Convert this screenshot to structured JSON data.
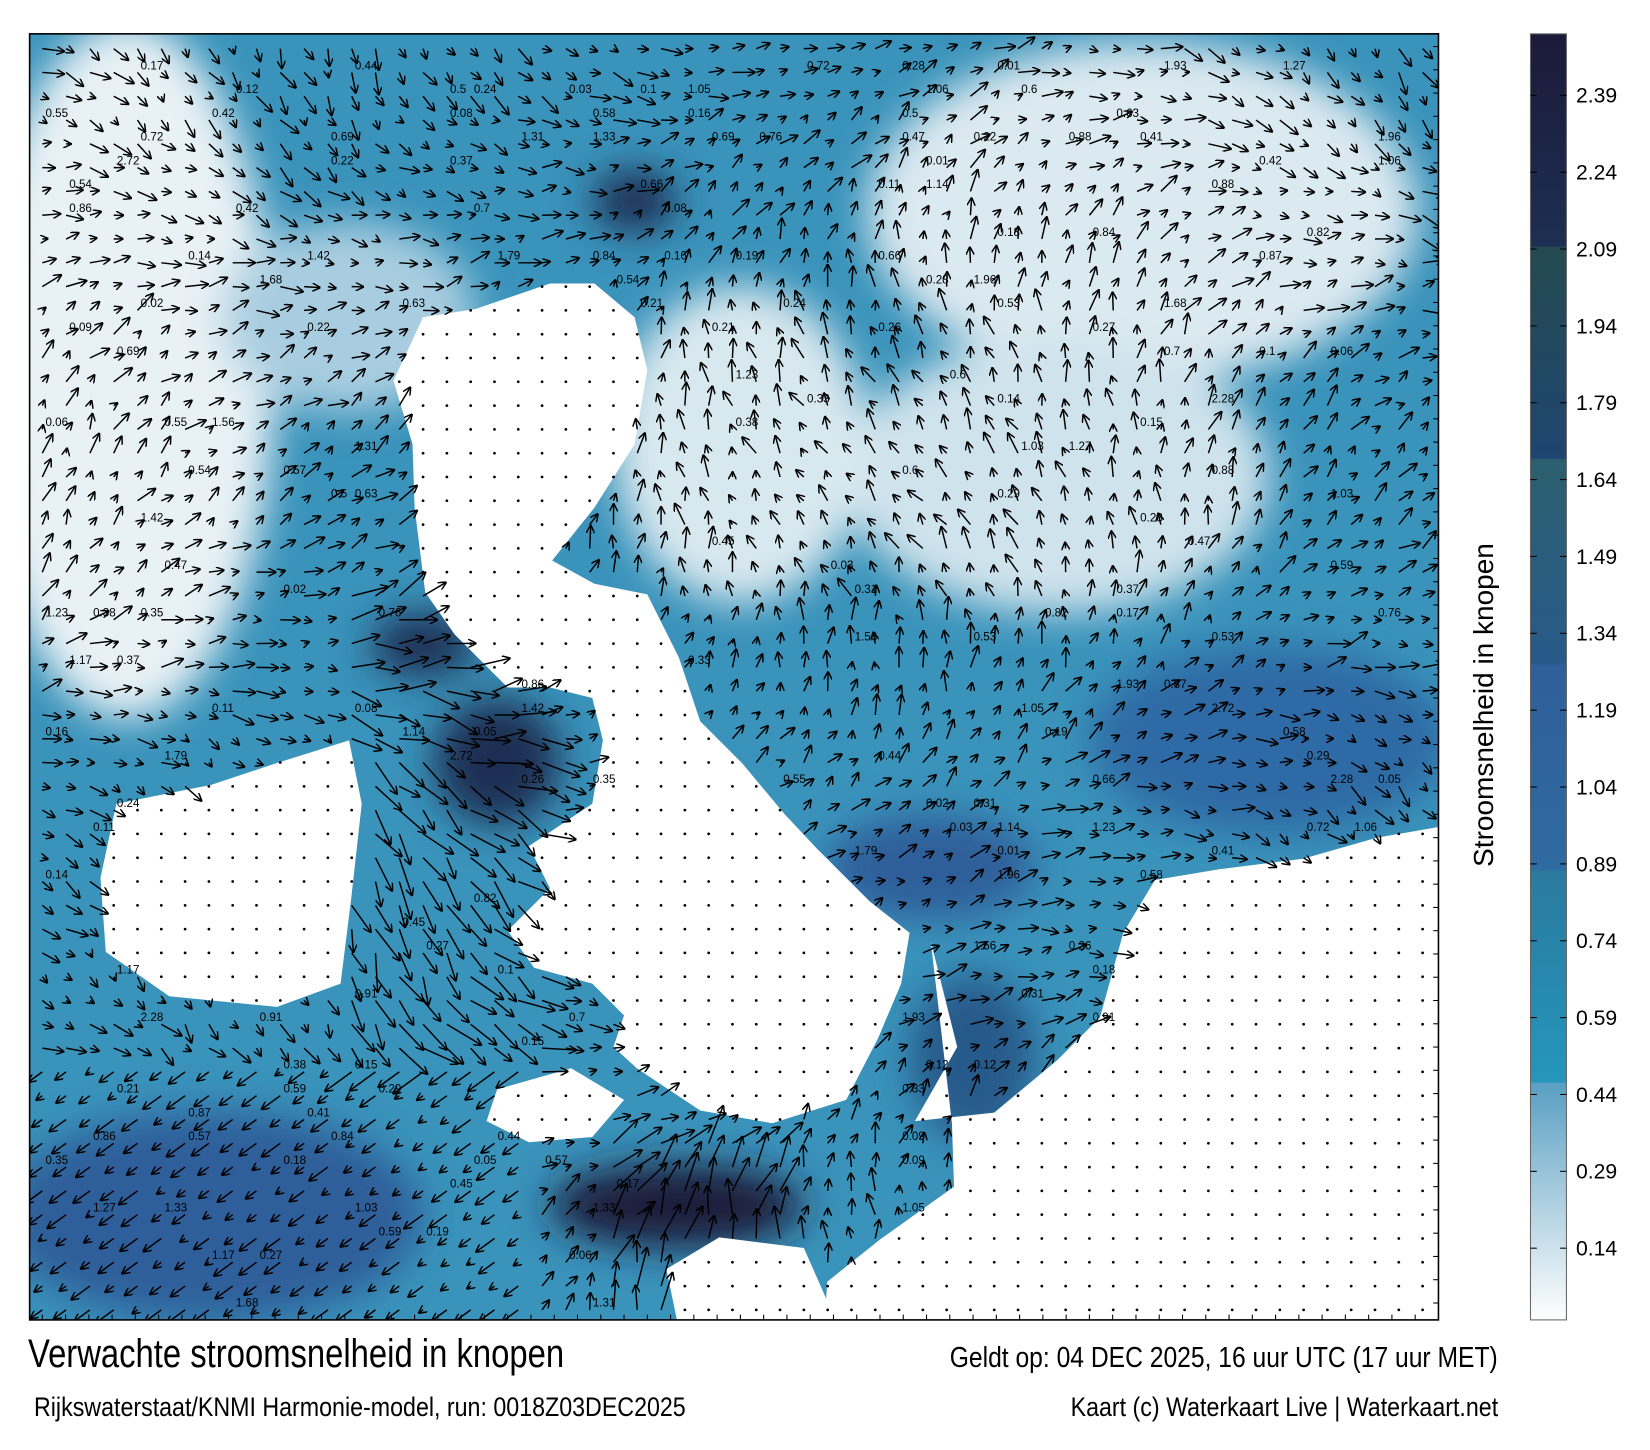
{
  "map": {
    "title": "Verwachte stroomsnelheid in knopen",
    "valid_time": "Geldt op: 04 DEC 2025, 16 uur UTC (17 uur MET)",
    "source": "Rijkswaterstaat/KNMI Harmonie-model, run: 0018Z03DEC2025",
    "credit": "Kaart (c) Waterkaart Live | Waterkaart.net",
    "variable": "stroomsnelheid",
    "unit": "knopen",
    "vector_symbol": "arrow-icon",
    "land_symbol": "dot-icon",
    "speed_labels": [
      "0.41",
      "0.37",
      "0.29",
      "0.72",
      "0.5",
      "0.55",
      "0.14",
      "0.11",
      "0.31",
      "0.26",
      "0.63",
      "0.57",
      "0.45",
      "0.15",
      "0.16",
      "0.18",
      "0.22",
      "0.6",
      "0.87",
      "1.06",
      "1.31",
      "1.42",
      "0.76",
      "0.44",
      "0.38",
      "0.24",
      "0.12",
      "0.17",
      "0.03",
      "0.05",
      "0.33",
      "0.28",
      "0.47",
      "0.58",
      "0.84",
      "1.56",
      "1.79",
      "1.93",
      "1.23",
      "1.17",
      "0.91",
      "1.14",
      "0.69",
      "0.88",
      "1.03",
      "1.27",
      "1.68",
      "2.28",
      "2.72",
      "1.96",
      "1.33",
      "1.05",
      "0.82",
      "0.66",
      "0.59",
      "0.53",
      "0.7",
      "0.86",
      "0.02",
      "0.09",
      "0.35",
      "0.21",
      "0.42",
      "0.54",
      "0.27",
      "0.19",
      "0.1",
      "0.08",
      "0.06",
      "0.01"
    ]
  },
  "colorbar": {
    "label": "Stroomsnelheid in knopen",
    "range": [
      0,
      2.51
    ],
    "ticks": [
      "2.39",
      "2.24",
      "2.09",
      "1.94",
      "1.79",
      "1.64",
      "1.49",
      "1.34",
      "1.19",
      "1.04",
      "0.89",
      "0.74",
      "0.59",
      "0.44",
      "0.29",
      "0.14"
    ],
    "colors": {
      "max": "#1c1a3a",
      "high": "#234a4f",
      "mid_high": "#2c5f6e",
      "mid": "#2f5f9a",
      "mid_low": "#2a7fa4",
      "low": "#2592b8",
      "min": "#ffffff"
    }
  }
}
